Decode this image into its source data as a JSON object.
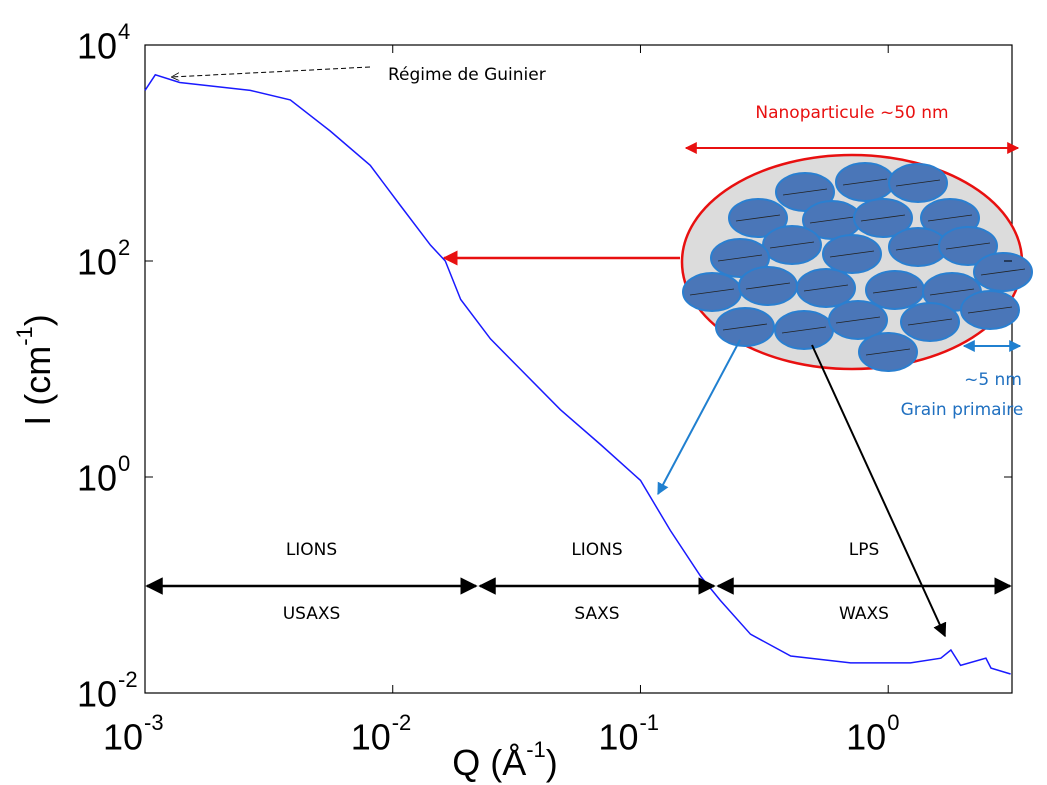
{
  "chart_data": {
    "type": "line",
    "log_x": true,
    "log_y": true,
    "color": "#1a1aff",
    "xlim": [
      0.001,
      3.16
    ],
    "ylim": [
      0.01,
      10000
    ],
    "xticks": [
      {
        "value": 0.001,
        "label": "10",
        "exponent": "-3"
      },
      {
        "value": 0.01,
        "label": "10",
        "exponent": "-2"
      },
      {
        "value": 0.1,
        "label": "10",
        "exponent": "-1"
      },
      {
        "value": 1,
        "label": "10",
        "exponent": "0"
      }
    ],
    "yticks": [
      {
        "value": 0.01,
        "label": "10",
        "exponent": "-2"
      },
      {
        "value": 1,
        "label": "10",
        "exponent": "0"
      },
      {
        "value": 100,
        "label": "10",
        "exponent": "2"
      },
      {
        "value": 10000,
        "label": "10",
        "exponent": "4"
      }
    ],
    "x_label": {
      "text": "Q (Å",
      "exponent": "-1",
      "end": ")"
    },
    "y_label": {
      "text": "I (cm",
      "exponent": "-1",
      "end": ")"
    },
    "x": [
      0.001,
      0.0011,
      0.00138,
      0.00266,
      0.00386,
      0.00559,
      0.00811,
      0.0107,
      0.0142,
      0.0163,
      0.0188,
      0.0248,
      0.0327,
      0.0475,
      0.069,
      0.1,
      0.132,
      0.175,
      0.21,
      0.278,
      0.404,
      0.705,
      1.23,
      1.63,
      1.79,
      1.96,
      2.48,
      2.6,
      3.12
    ],
    "values": [
      3800,
      5300,
      4500,
      3800,
      3100,
      1600,
      770,
      330,
      140,
      100,
      44,
      19,
      10,
      4.2,
      2,
      0.93,
      0.32,
      0.12,
      0.072,
      0.035,
      0.022,
      0.019,
      0.019,
      0.021,
      0.025,
      0.018,
      0.021,
      0.017,
      0.015
    ],
    "annotations": {
      "guinier": "Régime de Guinier",
      "nanoparticle": "Nanoparticule ~50 nm",
      "grain_size": "~5 nm",
      "grain": "Grain primaire",
      "ranges": [
        {
          "facility": "LIONS",
          "technique": "USAXS"
        },
        {
          "facility": "LIONS",
          "technique": "SAXS"
        },
        {
          "facility": "LPS",
          "technique": "WAXS"
        }
      ]
    }
  }
}
